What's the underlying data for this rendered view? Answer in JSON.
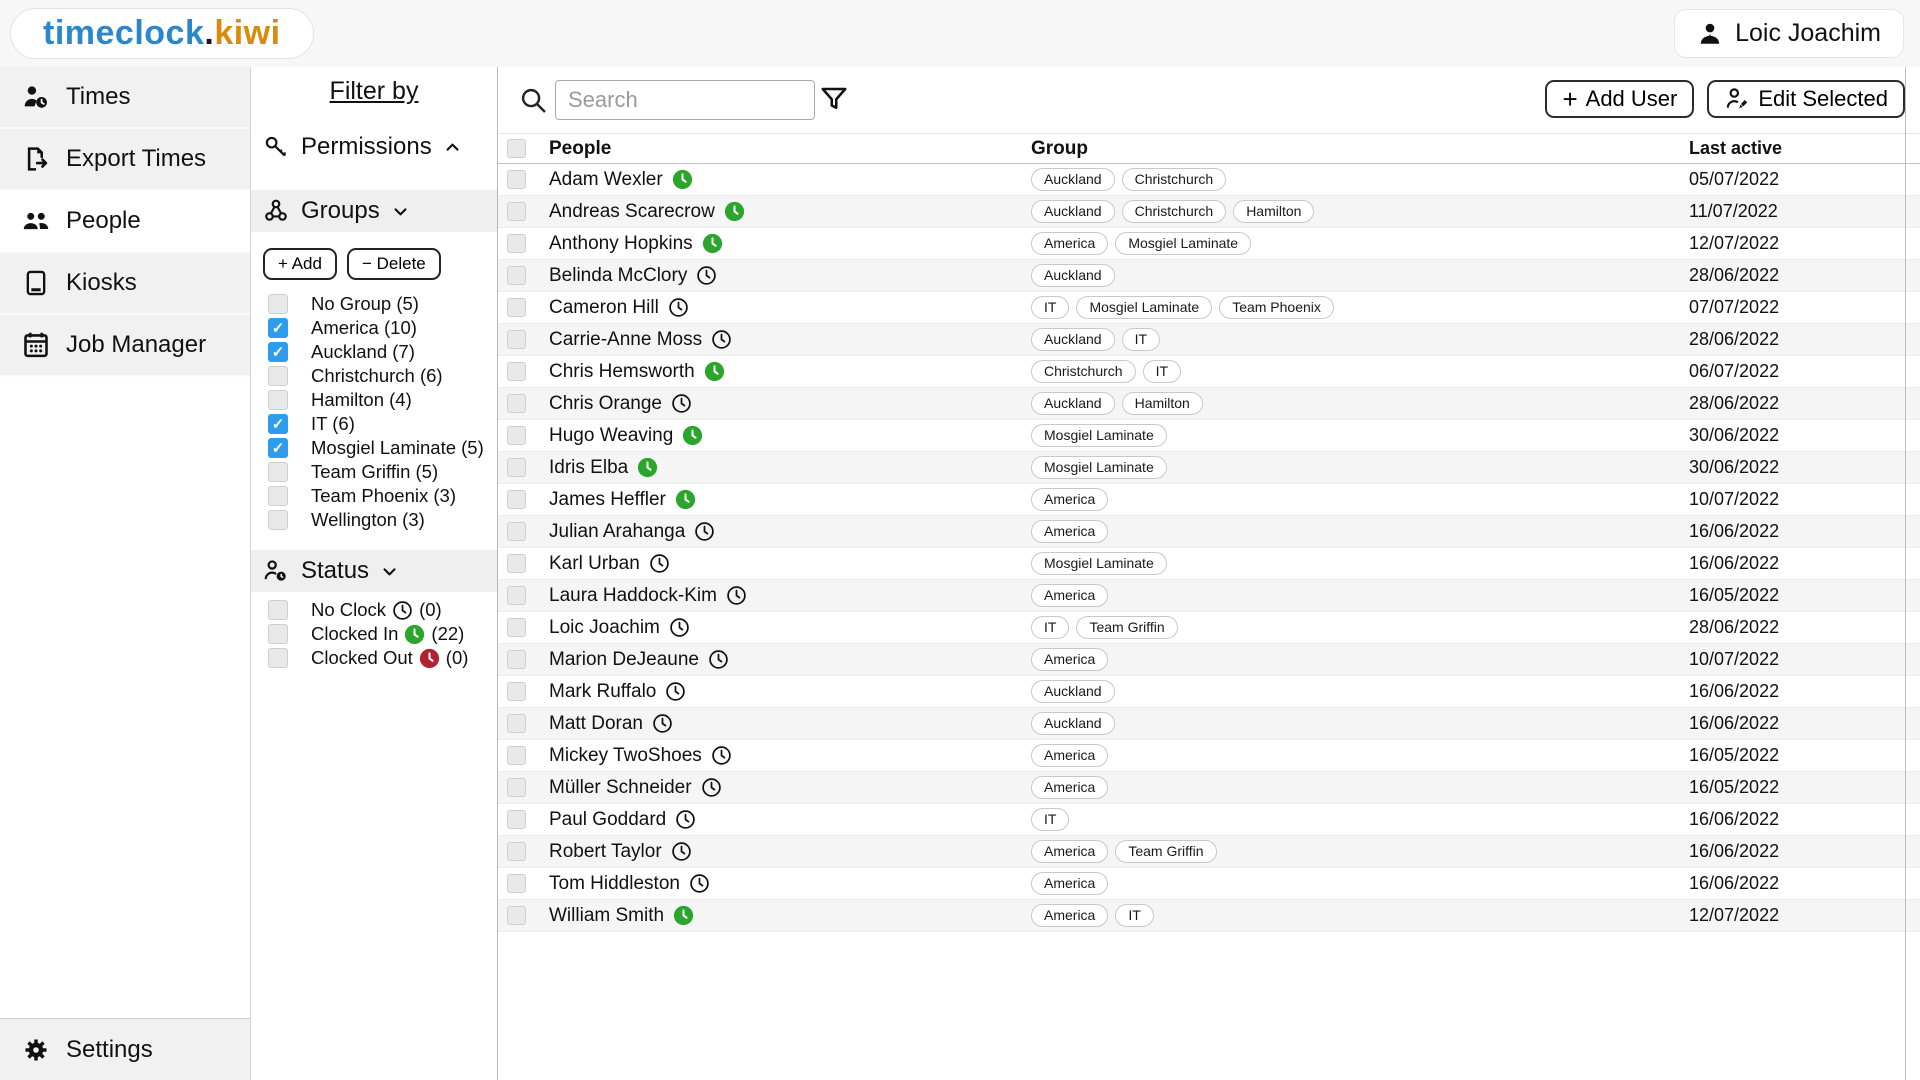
{
  "brand": {
    "part1": "timeclock",
    "part2": ".",
    "part3": "kiwi"
  },
  "header": {
    "user_name": "Loic Joachim"
  },
  "glyphs": {
    "check": "✓",
    "plus": "+"
  },
  "colors": {
    "logo-blue": "#2b87cb",
    "logo-orange": "#d98b0c",
    "checkbox-blue": "#2e9df0",
    "clock-green": "#2ba52b",
    "clock-red": "#b0242f"
  },
  "sidebar": {
    "items": [
      {
        "label": "Times",
        "icon": "person-clock-icon",
        "active": false
      },
      {
        "label": "Export Times",
        "icon": "export-document-icon",
        "active": false
      },
      {
        "label": "People",
        "icon": "people-icon",
        "active": true
      },
      {
        "label": "Kiosks",
        "icon": "kiosk-tablet-icon",
        "active": false
      },
      {
        "label": "Job Manager",
        "icon": "calendar-icon",
        "active": false
      }
    ],
    "settings_label": "Settings"
  },
  "filter_panel": {
    "title": "Filter by",
    "permissions_label": "Permissions",
    "groups_label": "Groups",
    "add_label": "+ Add",
    "delete_label": "− Delete",
    "status_label": "Status",
    "groups": [
      {
        "label": "No Group",
        "count": 5,
        "checked": false
      },
      {
        "label": "America",
        "count": 10,
        "checked": true
      },
      {
        "label": "Auckland",
        "count": 7,
        "checked": true
      },
      {
        "label": "Christchurch",
        "count": 6,
        "checked": false
      },
      {
        "label": "Hamilton",
        "count": 4,
        "checked": false
      },
      {
        "label": "IT",
        "count": 6,
        "checked": true
      },
      {
        "label": "Mosgiel Laminate",
        "count": 5,
        "checked": true
      },
      {
        "label": "Team Griffin",
        "count": 5,
        "checked": false
      },
      {
        "label": "Team Phoenix",
        "count": 3,
        "checked": false
      },
      {
        "label": "Wellington",
        "count": 3,
        "checked": false
      }
    ],
    "statuses": [
      {
        "label": "No Clock",
        "count": 0,
        "icon": "clock-outline",
        "checked": false
      },
      {
        "label": "Clocked In",
        "count": 22,
        "icon": "clock-green",
        "checked": false
      },
      {
        "label": "Clocked Out",
        "count": 0,
        "icon": "clock-red",
        "checked": false
      }
    ]
  },
  "toolbar": {
    "search_placeholder": "Search",
    "add_user_label": "Add User",
    "edit_selected_label": "Edit Selected"
  },
  "table": {
    "headers": {
      "people": "People",
      "group": "Group",
      "last_active": "Last active"
    },
    "rows": [
      {
        "name": "Adam Wexler",
        "status": "in",
        "groups": [
          "Auckland",
          "Christchurch"
        ],
        "last_active": "05/07/2022"
      },
      {
        "name": "Andreas Scarecrow",
        "status": "in",
        "groups": [
          "Auckland",
          "Christchurch",
          "Hamilton"
        ],
        "last_active": "11/07/2022"
      },
      {
        "name": "Anthony Hopkins",
        "status": "in",
        "groups": [
          "America",
          "Mosgiel Laminate"
        ],
        "last_active": "12/07/2022"
      },
      {
        "name": "Belinda McClory",
        "status": "none",
        "groups": [
          "Auckland"
        ],
        "last_active": "28/06/2022"
      },
      {
        "name": "Cameron Hill",
        "status": "none",
        "groups": [
          "IT",
          "Mosgiel Laminate",
          "Team Phoenix"
        ],
        "last_active": "07/07/2022"
      },
      {
        "name": "Carrie-Anne Moss",
        "status": "none",
        "groups": [
          "Auckland",
          "IT"
        ],
        "last_active": "28/06/2022"
      },
      {
        "name": "Chris Hemsworth",
        "status": "in",
        "groups": [
          "Christchurch",
          "IT"
        ],
        "last_active": "06/07/2022"
      },
      {
        "name": "Chris Orange",
        "status": "none",
        "groups": [
          "Auckland",
          "Hamilton"
        ],
        "last_active": "28/06/2022"
      },
      {
        "name": "Hugo Weaving",
        "status": "in",
        "groups": [
          "Mosgiel Laminate"
        ],
        "last_active": "30/06/2022"
      },
      {
        "name": "Idris Elba",
        "status": "in",
        "groups": [
          "Mosgiel Laminate"
        ],
        "last_active": "30/06/2022"
      },
      {
        "name": "James Heffler",
        "status": "in",
        "groups": [
          "America"
        ],
        "last_active": "10/07/2022"
      },
      {
        "name": "Julian Arahanga",
        "status": "none",
        "groups": [
          "America"
        ],
        "last_active": "16/06/2022"
      },
      {
        "name": "Karl Urban",
        "status": "none",
        "groups": [
          "Mosgiel Laminate"
        ],
        "last_active": "16/06/2022"
      },
      {
        "name": "Laura Haddock-Kim",
        "status": "none",
        "groups": [
          "America"
        ],
        "last_active": "16/05/2022"
      },
      {
        "name": "Loic Joachim",
        "status": "none",
        "groups": [
          "IT",
          "Team Griffin"
        ],
        "last_active": "28/06/2022"
      },
      {
        "name": "Marion DeJeaune",
        "status": "none",
        "groups": [
          "America"
        ],
        "last_active": "10/07/2022"
      },
      {
        "name": "Mark Ruffalo",
        "status": "none",
        "groups": [
          "Auckland"
        ],
        "last_active": "16/06/2022"
      },
      {
        "name": "Matt Doran",
        "status": "none",
        "groups": [
          "Auckland"
        ],
        "last_active": "16/06/2022"
      },
      {
        "name": "Mickey TwoShoes",
        "status": "none",
        "groups": [
          "America"
        ],
        "last_active": "16/05/2022"
      },
      {
        "name": "Müller Schneider",
        "status": "none",
        "groups": [
          "America"
        ],
        "last_active": "16/05/2022"
      },
      {
        "name": "Paul Goddard",
        "status": "none",
        "groups": [
          "IT"
        ],
        "last_active": "16/06/2022"
      },
      {
        "name": "Robert Taylor",
        "status": "none",
        "groups": [
          "America",
          "Team Griffin"
        ],
        "last_active": "16/06/2022"
      },
      {
        "name": "Tom Hiddleston",
        "status": "none",
        "groups": [
          "America"
        ],
        "last_active": "16/06/2022"
      },
      {
        "name": "William Smith",
        "status": "in",
        "groups": [
          "America",
          "IT"
        ],
        "last_active": "12/07/2022"
      }
    ]
  }
}
